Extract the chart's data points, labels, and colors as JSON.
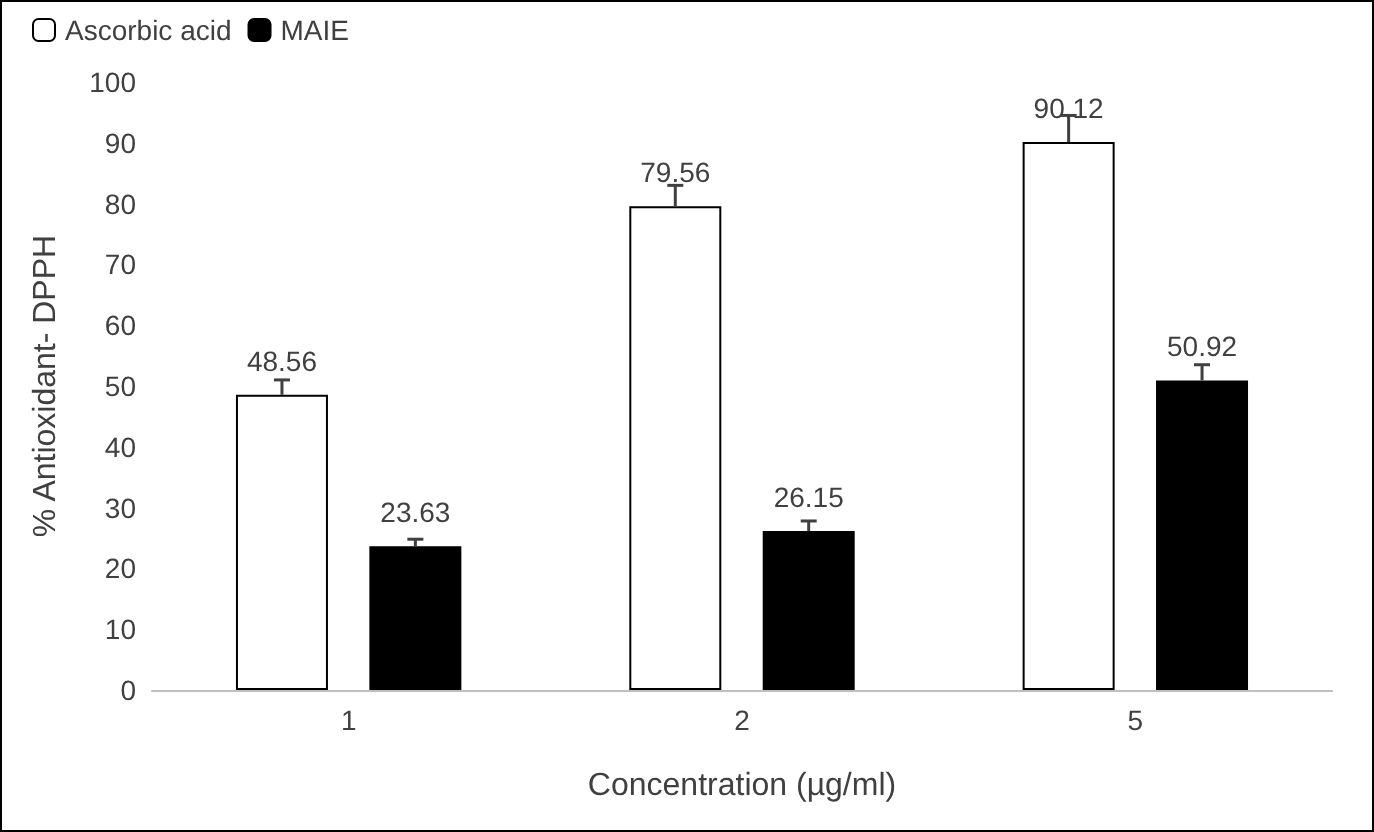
{
  "chart_data": {
    "type": "bar",
    "xlabel": "Concentration (µg/ml)",
    "ylabel": "% Antioxidant- DPPH",
    "categories": [
      "1",
      "2",
      "5"
    ],
    "series": [
      {
        "name": "Ascorbic acid",
        "color": "#ffffff",
        "values": [
          48.56,
          79.56,
          90.12
        ],
        "errors": [
          [
            48.56,
            51
          ],
          [
            79.56,
            83
          ],
          [
            90.12,
            94.5
          ]
        ]
      },
      {
        "name": "MAIE",
        "color": "#000000",
        "values": [
          23.63,
          26.15,
          50.92
        ],
        "errors": [
          [
            23.63,
            24.8
          ],
          [
            26.15,
            27.8
          ],
          [
            50.92,
            53.5
          ]
        ]
      }
    ],
    "ylim": [
      0,
      100
    ],
    "yticks": [
      0,
      10,
      20,
      30,
      40,
      50,
      60,
      70,
      80,
      90,
      100
    ],
    "grid": false,
    "legend": "top left",
    "data_labels": true
  }
}
